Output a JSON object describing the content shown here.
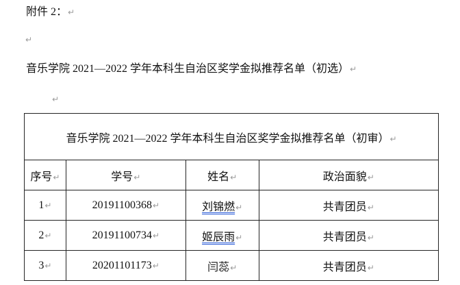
{
  "attachment_label": "附件 2：",
  "paragraph_mark": "↵",
  "document_title": "音乐学院 2021—2022 学年本科生自治区奖学金拟推荐名单（初选）",
  "table": {
    "title": "音乐学院 2021—2022 学年本科生自治区奖学金拟推荐名单（初审）",
    "headers": [
      "序号",
      "学号",
      "姓名",
      "政治面貌"
    ],
    "rows": [
      {
        "no": "1",
        "id": "20191100368",
        "name": "刘锦燃",
        "status": "共青团员",
        "name_flagged": true
      },
      {
        "no": "2",
        "id": "20191100734",
        "name": "姬辰雨",
        "status": "共青团员",
        "name_flagged": true
      },
      {
        "no": "3",
        "id": "20201101173",
        "name": "闫蕊",
        "status": "共青团员",
        "name_flagged": false
      }
    ]
  },
  "colors": {
    "grammar_underline": "#2a5bd7",
    "formatting_mark": "#9a9a9a"
  }
}
